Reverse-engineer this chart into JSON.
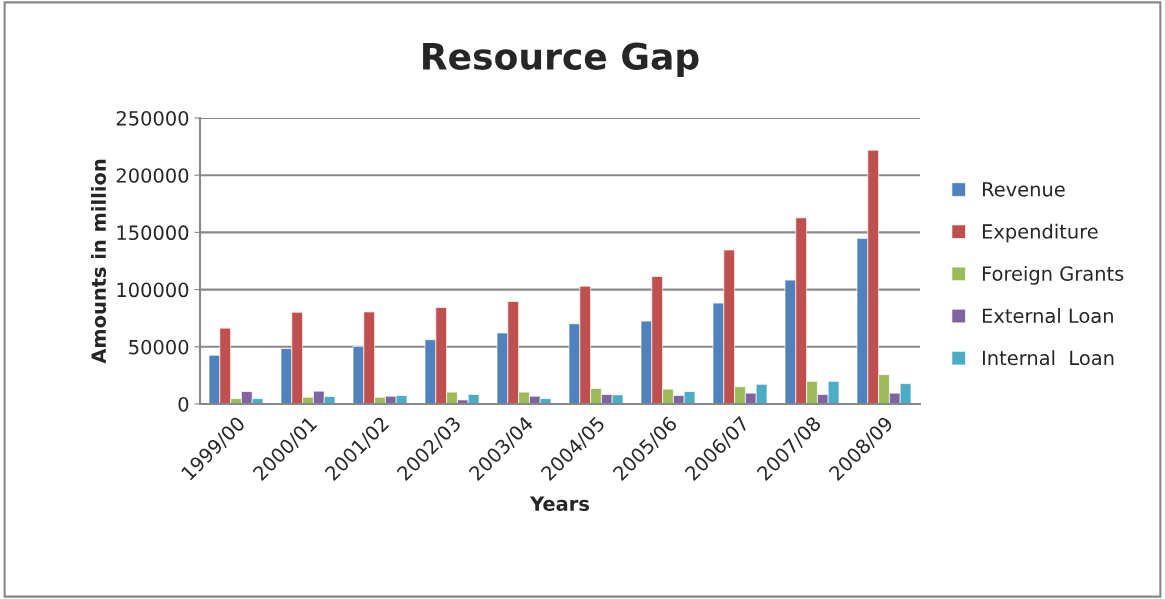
{
  "chart_data": {
    "type": "bar",
    "title": "Resource Gap",
    "xlabel": "Years",
    "ylabel": "Amounts in million",
    "categories": [
      "1999/00",
      "2000/01",
      "2001/02",
      "2002/03",
      "2003/04",
      "2004/05",
      "2005/06",
      "2006/07",
      "2007/08",
      "2008/09"
    ],
    "series": [
      {
        "name": "Revenue",
        "color": "#4f81bd",
        "values": [
          42600,
          48500,
          50300,
          56200,
          62100,
          70100,
          72500,
          88200,
          108300,
          144700
        ]
      },
      {
        "name": "Expenditure",
        "color": "#c0504d",
        "values": [
          66300,
          80200,
          80500,
          84300,
          89600,
          103000,
          111500,
          134600,
          162700,
          221900
        ]
      },
      {
        "name": "Foreign Grants",
        "color": "#9bbb59",
        "values": [
          4700,
          5900,
          5900,
          10400,
          10400,
          13600,
          13000,
          15100,
          19800,
          25700
        ]
      },
      {
        "name": "External Loan",
        "color": "#8064a2",
        "values": [
          10900,
          11200,
          6800,
          3600,
          6800,
          8300,
          7400,
          9500,
          8300,
          9500
        ]
      },
      {
        "name": "Internal  Loan",
        "color": "#4bacc6",
        "values": [
          4700,
          6500,
          7400,
          8300,
          4700,
          8000,
          10900,
          17200,
          19800,
          17800
        ]
      }
    ],
    "ylim": [
      0,
      250000
    ],
    "yticks": [
      0,
      50000,
      100000,
      150000,
      200000,
      250000
    ],
    "grid": "y",
    "legend": "right"
  }
}
